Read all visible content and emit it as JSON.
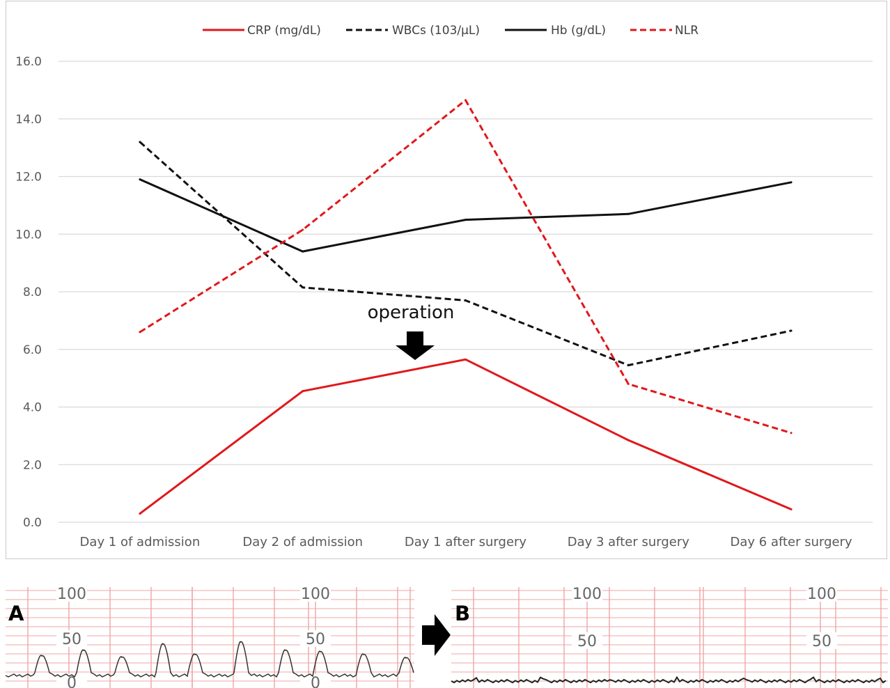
{
  "chart_data": [
    {
      "type": "line",
      "legend_position": "top",
      "grid": true,
      "categories": [
        "Day 1 of admission",
        "Day 2 of admission",
        "Day 1 after surgery",
        "Day 3 after surgery",
        "Day 6 after surgery"
      ],
      "ylim": [
        0,
        16
      ],
      "yticks": [
        "0.0",
        "2.0",
        "4.0",
        "6.0",
        "8.0",
        "10.0",
        "12.0",
        "14.0",
        "16.0"
      ],
      "series": [
        {
          "name": "CRP  (mg/dL)",
          "values": [
            0.3,
            4.55,
            5.65,
            2.85,
            0.45
          ],
          "color": "#e0181b",
          "dash": "solid"
        },
        {
          "name": "WBCs  (103/μL)",
          "values": [
            13.2,
            8.15,
            7.7,
            5.45,
            6.65
          ],
          "color": "#111111",
          "dash": "dashed"
        },
        {
          "name": "Hb  (g/dL)",
          "values": [
            11.9,
            9.4,
            10.5,
            10.7,
            11.8
          ],
          "color": "#111111",
          "dash": "solid"
        },
        {
          "name": "NLR",
          "values": [
            6.6,
            10.15,
            14.65,
            4.8,
            3.1
          ],
          "color": "#e0181b",
          "dash": "dashed"
        }
      ],
      "annotation": {
        "text": "operation",
        "between": [
          "Day 2 of admission",
          "Day 1 after surgery"
        ]
      }
    },
    {
      "type": "line",
      "panel": "A",
      "grid": true,
      "tick_labels": [
        "100",
        "50",
        "0"
      ],
      "pattern": "repeated peaks",
      "peak_heights": [
        28,
        36,
        26,
        45,
        30,
        48,
        36,
        34,
        30,
        25
      ]
    },
    {
      "type": "line",
      "panel": "B",
      "grid": true,
      "tick_labels": [
        "100",
        "50"
      ],
      "pattern": "flat"
    }
  ],
  "colors": {
    "grid": "#d9d9d9",
    "ctg_grid": "#f0a5a5",
    "ctg_label": "#666666",
    "frame": "#c8c8c8"
  },
  "icons": {
    "arrow_between_panels": "right-arrow-icon",
    "operation_arrow": "down-arrow-icon"
  }
}
